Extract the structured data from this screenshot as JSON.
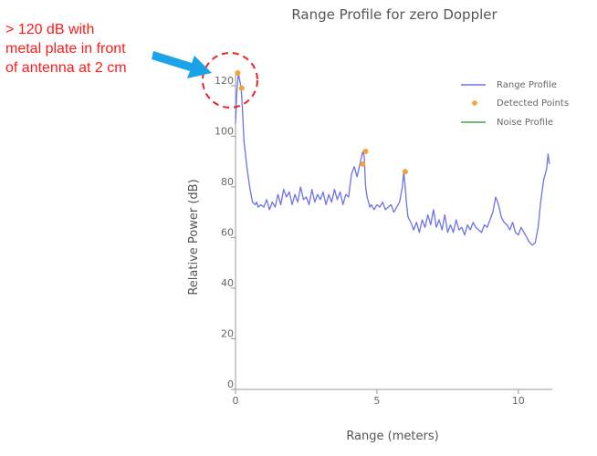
{
  "annotation": {
    "lines": [
      "> 120 dB with",
      "metal plate in front",
      "of antenna at 2 cm"
    ],
    "color": "#ff1a1a",
    "arrow_color": "#1aa3e8"
  },
  "chart_data": {
    "type": "line",
    "title": "Range Profile for zero Doppler",
    "xlabel": "Range (meters)",
    "ylabel": "Relative Power (dB)",
    "xlim": [
      0,
      11.2
    ],
    "ylim": [
      0,
      125
    ],
    "xticks": [
      0,
      5,
      10
    ],
    "yticks": [
      0,
      20,
      40,
      60,
      80,
      100,
      120
    ],
    "legend_position": "top-right",
    "series": [
      {
        "name": "Range Profile",
        "color": "#6c74e6",
        "x": [
          0.0,
          0.05,
          0.1,
          0.15,
          0.2,
          0.25,
          0.3,
          0.4,
          0.5,
          0.6,
          0.7,
          0.75,
          0.8,
          0.9,
          1.0,
          1.1,
          1.2,
          1.3,
          1.4,
          1.5,
          1.6,
          1.7,
          1.8,
          1.9,
          2.0,
          2.1,
          2.2,
          2.3,
          2.4,
          2.5,
          2.6,
          2.7,
          2.8,
          2.9,
          3.0,
          3.1,
          3.2,
          3.3,
          3.4,
          3.5,
          3.6,
          3.7,
          3.8,
          3.9,
          4.0,
          4.1,
          4.2,
          4.3,
          4.4,
          4.5,
          4.55,
          4.6,
          4.65,
          4.7,
          4.75,
          4.8,
          4.9,
          5.0,
          5.1,
          5.2,
          5.3,
          5.4,
          5.5,
          5.6,
          5.7,
          5.8,
          5.9,
          5.95,
          6.0,
          6.05,
          6.1,
          6.2,
          6.3,
          6.4,
          6.5,
          6.6,
          6.7,
          6.8,
          6.9,
          7.0,
          7.1,
          7.2,
          7.3,
          7.4,
          7.5,
          7.6,
          7.7,
          7.8,
          7.9,
          8.0,
          8.1,
          8.2,
          8.3,
          8.4,
          8.5,
          8.6,
          8.7,
          8.8,
          8.9,
          9.0,
          9.1,
          9.2,
          9.3,
          9.4,
          9.5,
          9.6,
          9.7,
          9.8,
          9.9,
          10.0,
          10.1,
          10.2,
          10.3,
          10.4,
          10.5,
          10.6,
          10.7,
          10.8,
          10.9,
          11.0,
          11.05,
          11.1
        ],
        "y": [
          105,
          118,
          125,
          122,
          119,
          110,
          98,
          88,
          80,
          74,
          73,
          74,
          72,
          73,
          72,
          75,
          71,
          74,
          72,
          77,
          73,
          79,
          76,
          78,
          73,
          77,
          74,
          80,
          75,
          76,
          73,
          79,
          74,
          77,
          75,
          78,
          73,
          77,
          74,
          79,
          75,
          78,
          73,
          77,
          76,
          85,
          88,
          84,
          89,
          94,
          92,
          80,
          76,
          74,
          72,
          73,
          71,
          73,
          72,
          74,
          71,
          72,
          73,
          70,
          72,
          74,
          80,
          86,
          80,
          73,
          68,
          66,
          63,
          66,
          62,
          67,
          64,
          69,
          65,
          71,
          64,
          67,
          63,
          69,
          62,
          65,
          62,
          67,
          63,
          64,
          61,
          65,
          63,
          66,
          64,
          63,
          62,
          65,
          64,
          67,
          70,
          76,
          73,
          68,
          66,
          65,
          63,
          66,
          62,
          61,
          64,
          62,
          60,
          58,
          57,
          58,
          64,
          75,
          83,
          87,
          93,
          89
        ]
      },
      {
        "name": "Detected Points",
        "color": "#f2a23a",
        "x": [
          0.08,
          0.22,
          4.5,
          4.6,
          6.0
        ],
        "y": [
          125,
          119,
          89,
          94,
          86
        ]
      },
      {
        "name": "Noise Profile",
        "color": "#3fa645",
        "x": [],
        "y": []
      }
    ]
  }
}
